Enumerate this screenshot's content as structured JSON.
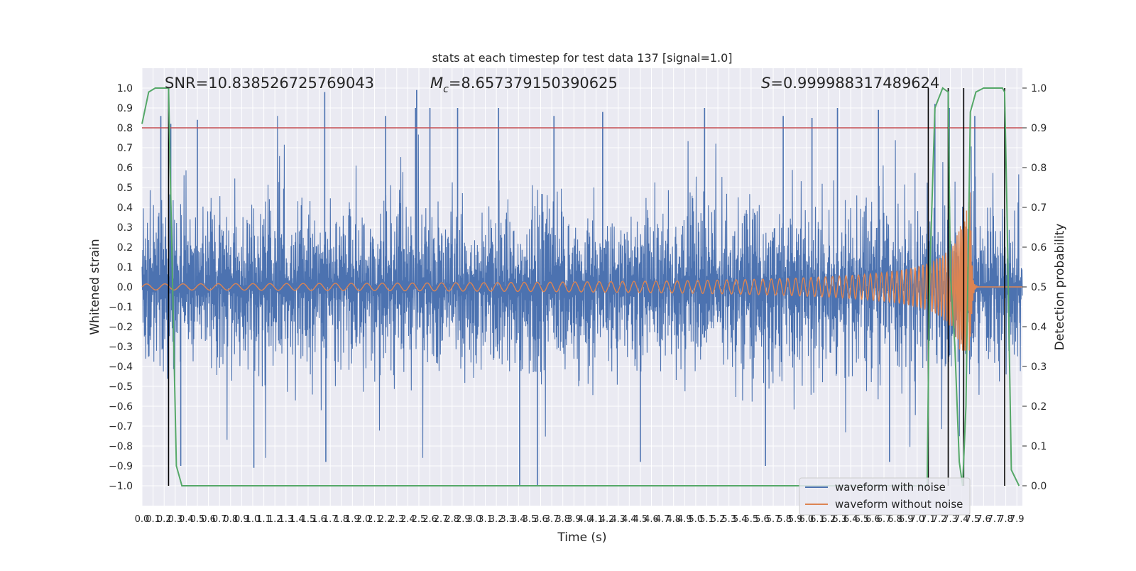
{
  "chart_data": {
    "type": "line",
    "title": "stats at each timestep for test data 137 [signal=1.0]",
    "xlabel": "Time (s)",
    "ylabel": "Whitened strain",
    "y2label": "Detection probability",
    "xlim": [
      0.0,
      7.95
    ],
    "ylim": [
      -1.1,
      1.1
    ],
    "y2lim": [
      -0.05,
      1.05
    ],
    "x_ticks": [
      0.0,
      0.1,
      0.2,
      0.3,
      0.4,
      0.5,
      0.6,
      0.7,
      0.8,
      0.9,
      1.0,
      1.1,
      1.2,
      1.3,
      1.4,
      1.5,
      1.6,
      1.7,
      1.8,
      1.9,
      2.0,
      2.1,
      2.2,
      2.3,
      2.4,
      2.5,
      2.6,
      2.7,
      2.8,
      2.9,
      3.0,
      3.1,
      3.2,
      3.3,
      3.4,
      3.5,
      3.6,
      3.7,
      3.8,
      3.9,
      4.0,
      4.1,
      4.2,
      4.3,
      4.4,
      4.5,
      4.6,
      4.7,
      4.8,
      4.9,
      5.0,
      5.1,
      5.2,
      5.3,
      5.4,
      5.5,
      5.6,
      5.7,
      5.8,
      5.9,
      6.0,
      6.1,
      6.2,
      6.3,
      6.4,
      6.5,
      6.6,
      6.7,
      6.8,
      6.9,
      7.0,
      7.1,
      7.2,
      7.3,
      7.4,
      7.5,
      7.6,
      7.7,
      7.8,
      7.9
    ],
    "y_ticks": [
      -1.0,
      -0.9,
      -0.8,
      -0.7,
      -0.6,
      -0.5,
      -0.4,
      -0.3,
      -0.2,
      -0.1,
      0.0,
      0.1,
      0.2,
      0.3,
      0.4,
      0.5,
      0.6,
      0.7,
      0.8,
      0.9,
      1.0
    ],
    "y2_ticks": [
      0.0,
      0.1,
      0.2,
      0.3,
      0.4,
      0.5,
      0.6,
      0.7,
      0.8,
      0.9,
      1.0
    ],
    "annotations": {
      "snr": "SNR=10.838526725769043",
      "mc": "=8.657379150390625",
      "s": "=0.999988317489624"
    },
    "threshold": {
      "value": 0.9,
      "axis": "right",
      "color": "#c44e52"
    },
    "vertical_lines": [
      0.24,
      7.1,
      7.28,
      7.42,
      7.79
    ],
    "series": [
      {
        "name": "waveform with noise",
        "axis": "left",
        "color": "#4c72b0",
        "kind": "noise",
        "x_range": [
          0.0,
          7.95
        ],
        "typical_amplitude": 0.55,
        "peaks": [
          [
            0.17,
            0.86
          ],
          [
            0.26,
            0.82
          ],
          [
            0.5,
            0.84
          ],
          [
            1.65,
            0.98
          ],
          [
            1.66,
            -0.88
          ],
          [
            2.47,
            0.9
          ],
          [
            2.48,
            0.99
          ],
          [
            2.6,
            0.9
          ],
          [
            2.85,
            0.9
          ],
          [
            3.22,
            0.9
          ],
          [
            3.41,
            -1.0
          ],
          [
            3.57,
            -1.0
          ],
          [
            1.01,
            -0.91
          ],
          [
            3.72,
            0.86
          ],
          [
            4.16,
            0.88
          ],
          [
            5.08,
            0.9
          ],
          [
            5.79,
            0.86
          ],
          [
            6.05,
            0.85
          ],
          [
            6.65,
            0.89
          ],
          [
            6.75,
            -0.88
          ],
          [
            7.16,
            0.92
          ],
          [
            7.29,
            0.9
          ],
          [
            7.52,
            0.86
          ],
          [
            6.28,
            0.9
          ],
          [
            2.2,
            0.86
          ],
          [
            0.35,
            -0.9
          ],
          [
            4.5,
            -0.88
          ],
          [
            5.63,
            -0.9
          ]
        ]
      },
      {
        "name": "waveform without noise",
        "axis": "left",
        "color": "#dd8452",
        "kind": "chirp",
        "x_range": [
          0.0,
          7.95
        ],
        "t_merger": 7.48,
        "amplitude_start": 0.015,
        "amplitude_peak": 0.48,
        "amplitude_min_peak": -0.32
      },
      {
        "name": "",
        "axis": "right",
        "color": "#55a868",
        "kind": "probability",
        "points": [
          [
            0.0,
            0.91
          ],
          [
            0.06,
            0.99
          ],
          [
            0.12,
            1.0
          ],
          [
            0.24,
            1.0
          ],
          [
            0.26,
            0.72
          ],
          [
            0.31,
            0.05
          ],
          [
            0.36,
            0.0
          ],
          [
            7.09,
            0.0
          ],
          [
            7.11,
            0.5
          ],
          [
            7.16,
            0.95
          ],
          [
            7.23,
            1.0
          ],
          [
            7.28,
            0.99
          ],
          [
            7.3,
            0.53
          ],
          [
            7.34,
            0.35
          ],
          [
            7.38,
            0.06
          ],
          [
            7.41,
            0.0
          ],
          [
            7.44,
            0.2
          ],
          [
            7.48,
            0.94
          ],
          [
            7.53,
            0.99
          ],
          [
            7.6,
            1.0
          ],
          [
            7.77,
            1.0
          ],
          [
            7.79,
            0.99
          ],
          [
            7.81,
            0.7
          ],
          [
            7.85,
            0.04
          ],
          [
            7.92,
            0.0
          ]
        ]
      }
    ],
    "legend": {
      "placement": "lower-right",
      "entries": [
        {
          "label": "waveform with noise",
          "color": "#4c72b0"
        },
        {
          "label": "waveform without noise",
          "color": "#dd8452"
        }
      ]
    },
    "grid": true
  }
}
